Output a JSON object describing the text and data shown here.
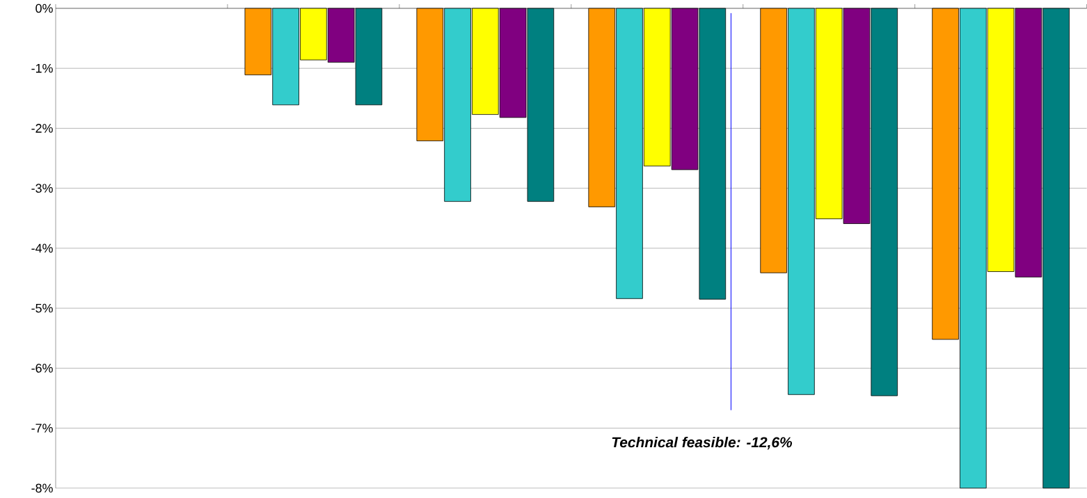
{
  "chart_data": {
    "type": "bar",
    "categories": [
      null,
      null,
      null,
      null,
      null,
      null
    ],
    "series": [
      {
        "color": "#ff9900",
        "values": [
          null,
          -1.11,
          -2.21,
          -3.31,
          -4.41,
          -5.52
        ]
      },
      {
        "color": "#33cccc",
        "values": [
          null,
          -1.61,
          -3.22,
          -4.84,
          -6.44,
          -8.0
        ]
      },
      {
        "color": "#ffff00",
        "values": [
          null,
          -0.86,
          -1.77,
          -2.63,
          -3.51,
          -4.39
        ]
      },
      {
        "color": "#800080",
        "values": [
          null,
          -0.9,
          -1.82,
          -2.69,
          -3.59,
          -4.48
        ]
      },
      {
        "color": "#008080",
        "values": [
          null,
          -1.61,
          -3.22,
          -4.85,
          -6.46,
          -8.0
        ]
      }
    ],
    "ylim": [
      -8,
      0
    ],
    "yticks": [
      {
        "value": 0,
        "label": "0%"
      },
      {
        "value": -1,
        "label": "-1%"
      },
      {
        "value": -2,
        "label": "-2%"
      },
      {
        "value": -3,
        "label": "-3%"
      },
      {
        "value": -4,
        "label": "-4%"
      },
      {
        "value": -5,
        "label": "-5%"
      },
      {
        "value": -6,
        "label": "-6%"
      },
      {
        "value": -7,
        "label": "-7%"
      },
      {
        "value": -8,
        "label": "-8%"
      }
    ],
    "grid": "y",
    "tick_labels": "y",
    "annotations": [
      "Technical feasible: -12,6%"
    ]
  }
}
